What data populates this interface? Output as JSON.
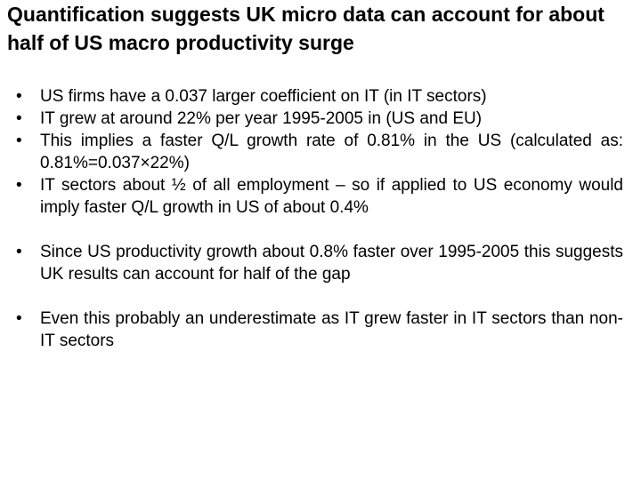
{
  "title": "Quantification suggests UK micro data can account for about half of US macro productivity surge",
  "bullets": [
    "US firms have a 0.037 larger coefficient on IT (in IT sectors)",
    "IT grew at around 22% per year 1995-2005 in (US and EU)",
    "This implies a faster Q/L growth rate of 0.81% in the US (calculated as: 0.81%=0.037×22%)",
    "IT sectors about ½ of all employment – so if applied to US economy would imply faster Q/L growth in US of about 0.4%",
    "Since US productivity growth about 0.8% faster over 1995-2005 this suggests UK results can account for half of the gap",
    "Even this probably an underestimate as IT grew faster in IT sectors than non-IT sectors"
  ]
}
